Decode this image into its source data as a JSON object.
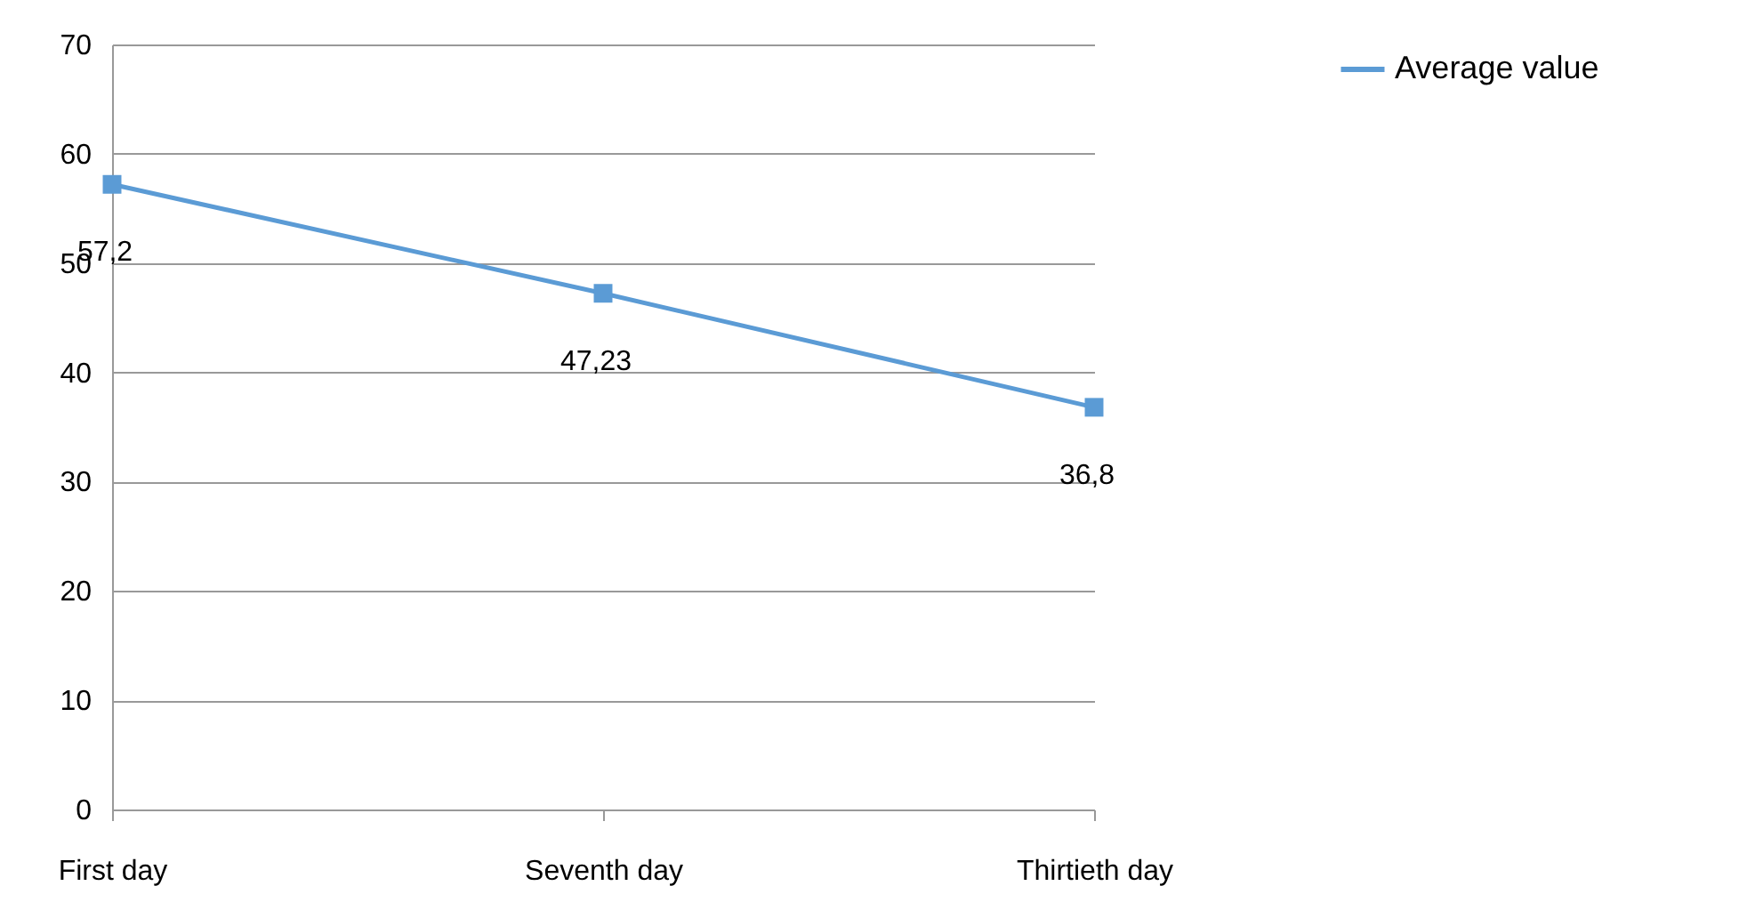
{
  "chart_data": {
    "type": "line",
    "categories": [
      "First day",
      "Seventh day",
      "Thirtieth day"
    ],
    "series": [
      {
        "name": "Average value",
        "color": "#5b9bd5",
        "values": [
          57.2,
          47.23,
          36.8
        ],
        "value_labels": [
          "57,2",
          "47,23",
          "36,8"
        ]
      }
    ],
    "ylim": [
      0,
      70
    ],
    "yticks": [
      0,
      10,
      20,
      30,
      40,
      50,
      60,
      70
    ],
    "grid": "y",
    "legend": "right",
    "marker": "square",
    "line_style": "solid"
  }
}
